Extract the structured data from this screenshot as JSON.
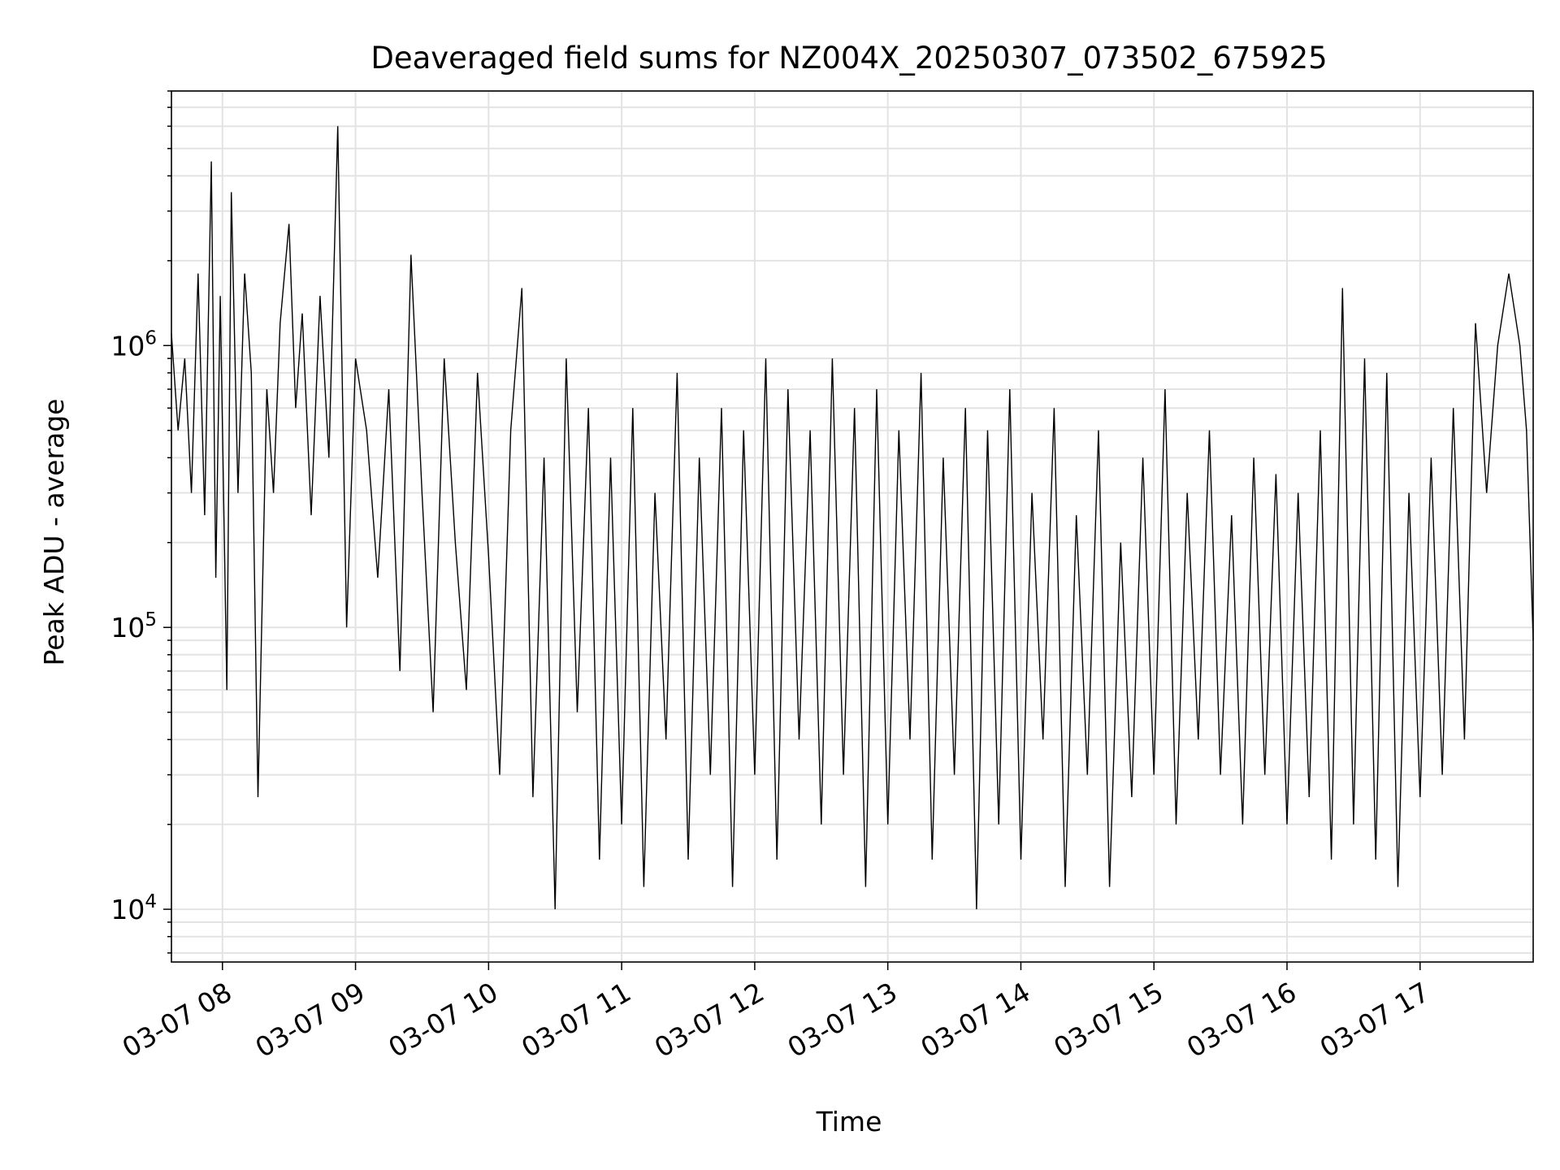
{
  "chart_data": {
    "type": "line",
    "title": "Deaveraged field sums for NZ004X_20250307_073502_675925",
    "xlabel": "Time",
    "ylabel": "Peak ADU - average",
    "yscale": "log",
    "ylim": [
      6500,
      8000000
    ],
    "xlim": [
      "2025-03-07 07:37",
      "2025-03-07 17:51"
    ],
    "grid": true,
    "line_color": "#000000",
    "x_ticks": [
      {
        "t": "2025-03-07 08:00",
        "label": "03-07 08"
      },
      {
        "t": "2025-03-07 09:00",
        "label": "03-07 09"
      },
      {
        "t": "2025-03-07 10:00",
        "label": "03-07 10"
      },
      {
        "t": "2025-03-07 11:00",
        "label": "03-07 11"
      },
      {
        "t": "2025-03-07 12:00",
        "label": "03-07 12"
      },
      {
        "t": "2025-03-07 13:00",
        "label": "03-07 13"
      },
      {
        "t": "2025-03-07 14:00",
        "label": "03-07 14"
      },
      {
        "t": "2025-03-07 15:00",
        "label": "03-07 15"
      },
      {
        "t": "2025-03-07 16:00",
        "label": "03-07 16"
      },
      {
        "t": "2025-03-07 17:00",
        "label": "03-07 17"
      }
    ],
    "y_ticks": [
      {
        "v": 10000,
        "base": "10",
        "exp": "4"
      },
      {
        "v": 100000,
        "base": "10",
        "exp": "5"
      },
      {
        "v": 1000000,
        "base": "10",
        "exp": "6"
      }
    ],
    "series": [
      {
        "x": [
          "2025-03-07 07:37",
          "2025-03-07 07:40",
          "2025-03-07 07:43",
          "2025-03-07 07:46",
          "2025-03-07 07:49",
          "2025-03-07 07:52",
          "2025-03-07 07:55",
          "2025-03-07 07:57",
          "2025-03-07 07:59",
          "2025-03-07 08:02",
          "2025-03-07 08:04",
          "2025-03-07 08:07",
          "2025-03-07 08:10",
          "2025-03-07 08:13",
          "2025-03-07 08:16",
          "2025-03-07 08:20",
          "2025-03-07 08:23",
          "2025-03-07 08:26",
          "2025-03-07 08:30",
          "2025-03-07 08:33",
          "2025-03-07 08:36",
          "2025-03-07 08:40",
          "2025-03-07 08:44",
          "2025-03-07 08:48",
          "2025-03-07 08:52",
          "2025-03-07 08:56",
          "2025-03-07 09:00",
          "2025-03-07 09:05",
          "2025-03-07 09:10",
          "2025-03-07 09:15",
          "2025-03-07 09:20",
          "2025-03-07 09:25",
          "2025-03-07 09:30",
          "2025-03-07 09:35",
          "2025-03-07 09:40",
          "2025-03-07 09:45",
          "2025-03-07 09:50",
          "2025-03-07 09:55",
          "2025-03-07 10:00",
          "2025-03-07 10:05",
          "2025-03-07 10:10",
          "2025-03-07 10:15",
          "2025-03-07 10:20",
          "2025-03-07 10:25",
          "2025-03-07 10:30",
          "2025-03-07 10:35",
          "2025-03-07 10:40",
          "2025-03-07 10:45",
          "2025-03-07 10:50",
          "2025-03-07 10:55",
          "2025-03-07 11:00",
          "2025-03-07 11:05",
          "2025-03-07 11:10",
          "2025-03-07 11:15",
          "2025-03-07 11:20",
          "2025-03-07 11:25",
          "2025-03-07 11:30",
          "2025-03-07 11:35",
          "2025-03-07 11:40",
          "2025-03-07 11:45",
          "2025-03-07 11:50",
          "2025-03-07 11:55",
          "2025-03-07 12:00",
          "2025-03-07 12:05",
          "2025-03-07 12:10",
          "2025-03-07 12:15",
          "2025-03-07 12:20",
          "2025-03-07 12:25",
          "2025-03-07 12:30",
          "2025-03-07 12:35",
          "2025-03-07 12:40",
          "2025-03-07 12:45",
          "2025-03-07 12:50",
          "2025-03-07 12:55",
          "2025-03-07 13:00",
          "2025-03-07 13:05",
          "2025-03-07 13:10",
          "2025-03-07 13:15",
          "2025-03-07 13:20",
          "2025-03-07 13:25",
          "2025-03-07 13:30",
          "2025-03-07 13:35",
          "2025-03-07 13:40",
          "2025-03-07 13:45",
          "2025-03-07 13:50",
          "2025-03-07 13:55",
          "2025-03-07 14:00",
          "2025-03-07 14:05",
          "2025-03-07 14:10",
          "2025-03-07 14:15",
          "2025-03-07 14:20",
          "2025-03-07 14:25",
          "2025-03-07 14:30",
          "2025-03-07 14:35",
          "2025-03-07 14:40",
          "2025-03-07 14:45",
          "2025-03-07 14:50",
          "2025-03-07 14:55",
          "2025-03-07 15:00",
          "2025-03-07 15:05",
          "2025-03-07 15:10",
          "2025-03-07 15:15",
          "2025-03-07 15:20",
          "2025-03-07 15:25",
          "2025-03-07 15:30",
          "2025-03-07 15:35",
          "2025-03-07 15:40",
          "2025-03-07 15:45",
          "2025-03-07 15:50",
          "2025-03-07 15:55",
          "2025-03-07 16:00",
          "2025-03-07 16:05",
          "2025-03-07 16:10",
          "2025-03-07 16:15",
          "2025-03-07 16:20",
          "2025-03-07 16:25",
          "2025-03-07 16:30",
          "2025-03-07 16:35",
          "2025-03-07 16:40",
          "2025-03-07 16:45",
          "2025-03-07 16:50",
          "2025-03-07 16:55",
          "2025-03-07 17:00",
          "2025-03-07 17:05",
          "2025-03-07 17:10",
          "2025-03-07 17:15",
          "2025-03-07 17:20",
          "2025-03-07 17:25",
          "2025-03-07 17:30",
          "2025-03-07 17:35",
          "2025-03-07 17:40",
          "2025-03-07 17:45",
          "2025-03-07 17:48",
          "2025-03-07 17:51"
        ],
        "y": [
          1100000,
          500000,
          900000,
          300000,
          1800000,
          250000,
          4500000,
          150000,
          1500000,
          60000,
          3500000,
          300000,
          1800000,
          800000,
          25000,
          700000,
          300000,
          1200000,
          2700000,
          600000,
          1300000,
          250000,
          1500000,
          400000,
          6000000,
          100000,
          900000,
          500000,
          150000,
          700000,
          70000,
          2100000,
          300000,
          50000,
          900000,
          200000,
          60000,
          800000,
          180000,
          30000,
          500000,
          1600000,
          25000,
          400000,
          10000,
          900000,
          50000,
          600000,
          15000,
          400000,
          20000,
          600000,
          12000,
          300000,
          40000,
          800000,
          15000,
          400000,
          30000,
          600000,
          12000,
          500000,
          30000,
          900000,
          15000,
          700000,
          40000,
          500000,
          20000,
          900000,
          30000,
          600000,
          12000,
          700000,
          20000,
          500000,
          40000,
          800000,
          15000,
          400000,
          30000,
          600000,
          10000,
          500000,
          20000,
          700000,
          15000,
          300000,
          40000,
          600000,
          12000,
          250000,
          30000,
          500000,
          12000,
          200000,
          25000,
          400000,
          30000,
          700000,
          20000,
          300000,
          40000,
          500000,
          30000,
          250000,
          20000,
          400000,
          30000,
          350000,
          20000,
          300000,
          25000,
          500000,
          15000,
          1600000,
          20000,
          900000,
          15000,
          800000,
          12000,
          300000,
          25000,
          400000,
          30000,
          600000,
          40000,
          1200000,
          300000,
          1000000,
          1800000,
          1000000,
          500000,
          90000
        ]
      }
    ]
  }
}
